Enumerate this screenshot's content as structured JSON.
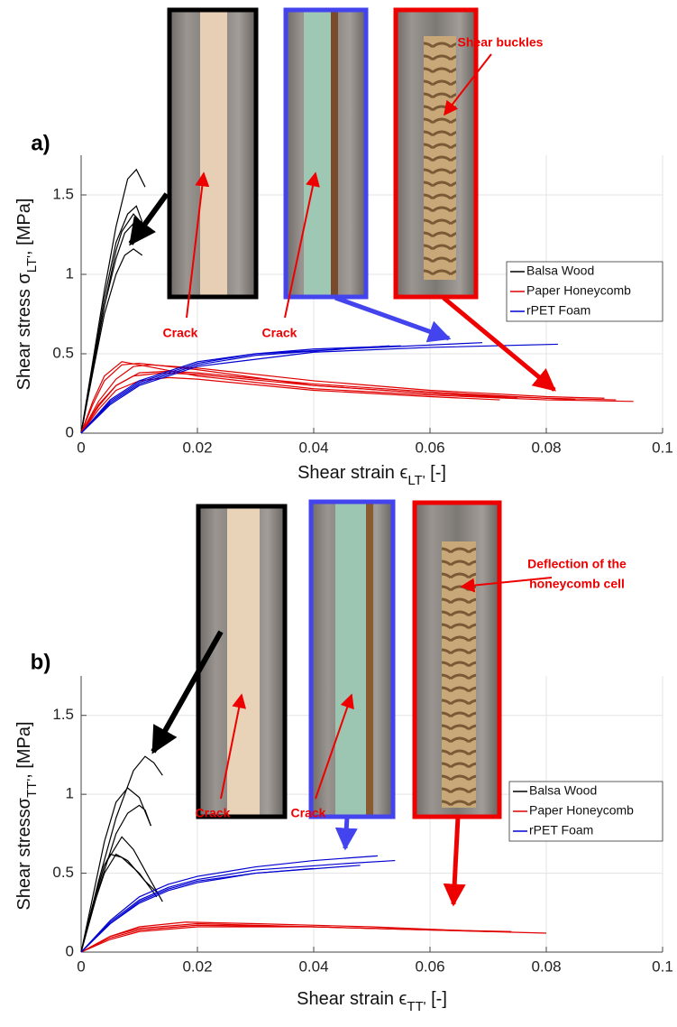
{
  "chart_data": [
    {
      "type": "line",
      "panel_label": "a)",
      "xlabel": {
        "text": "Shear strain ϵ",
        "sub": "LT'",
        "rest": " [-]"
      },
      "ylabel": {
        "text": "Shear stress σ",
        "sub": "LT'",
        "rest": ", [MPa]"
      },
      "xlim": [
        0,
        0.1
      ],
      "xticks": [
        0,
        0.02,
        0.04,
        0.06,
        0.08,
        0.1
      ],
      "ylim": [
        0,
        1.75
      ],
      "yticks": [
        0,
        0.5,
        1,
        1.5
      ],
      "grid": true,
      "legend": "right",
      "annotations": [
        "Crack",
        "Crack",
        "Shear buckles"
      ],
      "series": [
        {
          "name": "Balsa Wood",
          "color": "#000000",
          "curves": [
            {
              "x": [
                0,
                0.002,
                0.004,
                0.006,
                0.008,
                0.0095,
                0.011
              ],
              "values": [
                0,
                0.45,
                0.9,
                1.3,
                1.6,
                1.66,
                1.55
              ]
            },
            {
              "x": [
                0,
                0.002,
                0.004,
                0.006,
                0.008,
                0.0095,
                0.0105
              ],
              "values": [
                0,
                0.42,
                0.85,
                1.2,
                1.38,
                1.43,
                1.33
              ]
            },
            {
              "x": [
                0,
                0.002,
                0.004,
                0.006,
                0.007,
                0.009,
                0.011
              ],
              "values": [
                0,
                0.4,
                0.8,
                1.15,
                1.27,
                1.38,
                1.3
              ]
            },
            {
              "x": [
                0,
                0.002,
                0.004,
                0.006,
                0.0075,
                0.009,
                0.0105
              ],
              "values": [
                0,
                0.4,
                0.8,
                1.1,
                1.26,
                1.32,
                1.25
              ]
            },
            {
              "x": [
                0,
                0.002,
                0.004,
                0.006,
                0.0075,
                0.009,
                0.0105
              ],
              "values": [
                0,
                0.38,
                0.75,
                1.0,
                1.12,
                1.16,
                1.12
              ]
            }
          ]
        },
        {
          "name": "Paper Honeycomb",
          "color": "#e00000",
          "curves": [
            {
              "x": [
                0,
                0.002,
                0.004,
                0.007,
                0.01,
                0.02,
                0.04,
                0.06,
                0.08,
                0.095
              ],
              "values": [
                0,
                0.2,
                0.36,
                0.45,
                0.43,
                0.36,
                0.28,
                0.24,
                0.21,
                0.2
              ]
            },
            {
              "x": [
                0,
                0.002,
                0.004,
                0.007,
                0.01,
                0.02,
                0.04,
                0.06,
                0.08,
                0.092
              ],
              "values": [
                0,
                0.18,
                0.33,
                0.43,
                0.44,
                0.4,
                0.3,
                0.25,
                0.22,
                0.21
              ]
            },
            {
              "x": [
                0,
                0.003,
                0.006,
                0.009,
                0.012,
                0.02,
                0.04,
                0.06,
                0.08,
                0.09
              ],
              "values": [
                0,
                0.2,
                0.34,
                0.42,
                0.43,
                0.41,
                0.33,
                0.27,
                0.23,
                0.22
              ]
            },
            {
              "x": [
                0,
                0.003,
                0.006,
                0.009,
                0.014,
                0.02,
                0.04,
                0.06,
                0.075
              ],
              "values": [
                0,
                0.18,
                0.3,
                0.36,
                0.38,
                0.37,
                0.3,
                0.25,
                0.22
              ]
            },
            {
              "x": [
                0,
                0.003,
                0.006,
                0.01,
                0.015,
                0.02,
                0.04,
                0.06,
                0.072
              ],
              "values": [
                0,
                0.15,
                0.27,
                0.33,
                0.35,
                0.34,
                0.27,
                0.23,
                0.21
              ]
            },
            {
              "x": [
                0,
                0.003,
                0.006,
                0.01,
                0.015,
                0.02,
                0.04,
                0.06,
                0.085
              ],
              "values": [
                0,
                0.17,
                0.3,
                0.38,
                0.39,
                0.38,
                0.31,
                0.26,
                0.21
              ]
            }
          ]
        },
        {
          "name": "rPET Foam",
          "color": "#0000d0",
          "curves": [
            {
              "x": [
                0,
                0.005,
                0.01,
                0.02,
                0.03,
                0.04,
                0.055
              ],
              "values": [
                0,
                0.2,
                0.32,
                0.44,
                0.5,
                0.53,
                0.55
              ]
            },
            {
              "x": [
                0,
                0.005,
                0.01,
                0.02,
                0.03,
                0.045,
                0.069
              ],
              "values": [
                0,
                0.19,
                0.31,
                0.43,
                0.49,
                0.53,
                0.57
              ]
            },
            {
              "x": [
                0,
                0.005,
                0.01,
                0.02,
                0.04,
                0.06,
                0.082
              ],
              "values": [
                0,
                0.18,
                0.3,
                0.42,
                0.51,
                0.54,
                0.56
              ]
            },
            {
              "x": [
                0,
                0.005,
                0.01,
                0.02,
                0.03,
                0.045,
                0.053
              ],
              "values": [
                0,
                0.21,
                0.33,
                0.45,
                0.5,
                0.53,
                0.55
              ]
            }
          ]
        }
      ]
    },
    {
      "type": "line",
      "panel_label": "b)",
      "xlabel": {
        "text": "Shear strain ϵ",
        "sub": "TT'",
        "rest": " [-]"
      },
      "ylabel": {
        "text": "Shear stressσ",
        "sub": "TT'",
        "rest": ", [MPa]"
      },
      "xlim": [
        0,
        0.1
      ],
      "xticks": [
        0,
        0.02,
        0.04,
        0.06,
        0.08,
        0.1
      ],
      "ylim": [
        0,
        1.75
      ],
      "yticks": [
        0,
        0.5,
        1,
        1.5
      ],
      "grid": true,
      "legend": "right",
      "annotations": [
        "Crack",
        "Crack",
        "Deflection of the",
        "honeycomb cell"
      ],
      "series": [
        {
          "name": "Balsa Wood",
          "color": "#000000",
          "curves": [
            {
              "x": [
                0,
                0.003,
                0.006,
                0.009,
                0.011,
                0.0125,
                0.014
              ],
              "values": [
                0,
                0.45,
                0.85,
                1.15,
                1.24,
                1.2,
                1.12
              ]
            },
            {
              "x": [
                0,
                0.002,
                0.004,
                0.006,
                0.008,
                0.01,
                0.012
              ],
              "values": [
                0,
                0.35,
                0.7,
                0.95,
                1.04,
                0.98,
                0.8
              ]
            },
            {
              "x": [
                0,
                0.003,
                0.006,
                0.008,
                0.01,
                0.011,
                0.012
              ],
              "values": [
                0,
                0.4,
                0.75,
                0.88,
                0.93,
                0.9,
                0.8
              ]
            },
            {
              "x": [
                0,
                0.002,
                0.004,
                0.007,
                0.009,
                0.012,
                0.014
              ],
              "values": [
                0,
                0.3,
                0.55,
                0.73,
                0.65,
                0.45,
                0.32
              ]
            },
            {
              "x": [
                0,
                0.002,
                0.004,
                0.005,
                0.007,
                0.01,
                0.013
              ],
              "values": [
                0,
                0.3,
                0.55,
                0.62,
                0.6,
                0.5,
                0.35
              ]
            },
            {
              "x": [
                0,
                0.002,
                0.004,
                0.006,
                0.008,
                0.011,
                0.013
              ],
              "values": [
                0,
                0.28,
                0.5,
                0.62,
                0.58,
                0.45,
                0.38
              ]
            }
          ]
        },
        {
          "name": "Paper Honeycomb",
          "color": "#e00000",
          "curves": [
            {
              "x": [
                0,
                0.005,
                0.01,
                0.018,
                0.03,
                0.05,
                0.07,
                0.08
              ],
              "values": [
                0,
                0.1,
                0.16,
                0.19,
                0.18,
                0.16,
                0.13,
                0.12
              ]
            },
            {
              "x": [
                0,
                0.005,
                0.01,
                0.02,
                0.03,
                0.05,
                0.074
              ],
              "values": [
                0,
                0.1,
                0.15,
                0.18,
                0.17,
                0.15,
                0.13
              ]
            },
            {
              "x": [
                0,
                0.005,
                0.01,
                0.02,
                0.04,
                0.06,
                0.072
              ],
              "values": [
                0,
                0.08,
                0.13,
                0.16,
                0.16,
                0.14,
                0.13
              ]
            },
            {
              "x": [
                0,
                0.005,
                0.01,
                0.02,
                0.04,
                0.06,
                0.07
              ],
              "values": [
                0,
                0.09,
                0.14,
                0.17,
                0.16,
                0.14,
                0.13
              ]
            }
          ]
        },
        {
          "name": "rPET Foam",
          "color": "#0000d0",
          "curves": [
            {
              "x": [
                0,
                0.005,
                0.01,
                0.015,
                0.02,
                0.03,
                0.04,
                0.051
              ],
              "values": [
                0,
                0.2,
                0.35,
                0.43,
                0.48,
                0.54,
                0.58,
                0.61
              ]
            },
            {
              "x": [
                0,
                0.005,
                0.01,
                0.015,
                0.02,
                0.03,
                0.045,
                0.054
              ],
              "values": [
                0,
                0.19,
                0.33,
                0.41,
                0.46,
                0.52,
                0.56,
                0.58
              ]
            },
            {
              "x": [
                0,
                0.005,
                0.01,
                0.015,
                0.02,
                0.03,
                0.048
              ],
              "values": [
                0,
                0.18,
                0.32,
                0.4,
                0.45,
                0.5,
                0.55
              ]
            },
            {
              "x": [
                0,
                0.005,
                0.01,
                0.015,
                0.02,
                0.03,
                0.04
              ],
              "values": [
                0,
                0.18,
                0.31,
                0.39,
                0.44,
                0.5,
                0.53
              ]
            }
          ]
        }
      ]
    }
  ]
}
